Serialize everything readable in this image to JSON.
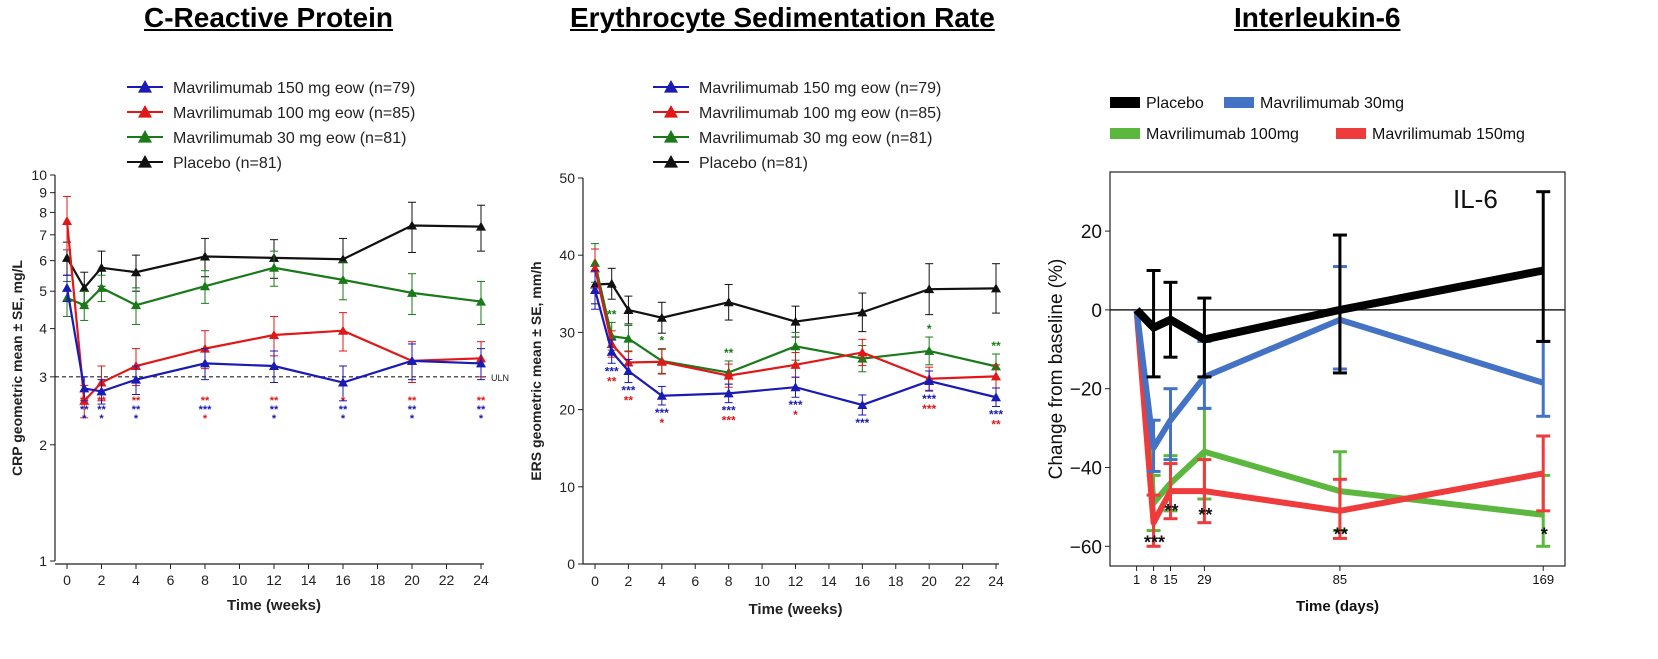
{
  "colors": {
    "blue": "#1a1ab4",
    "red": "#e01818",
    "green": "#1a7a1a",
    "black": "#111111",
    "il6_black": "#000000",
    "il6_blue": "#4472c4",
    "il6_green": "#5cb73f",
    "il6_red": "#ee3b3b"
  },
  "chart_data": [
    {
      "type": "line",
      "title": "C-Reactive Protein",
      "xlabel": "Time (weeks)",
      "ylabel": "CRP geometric mean ± SE, mg/L",
      "yscale": "log",
      "xlim": [
        0,
        24
      ],
      "ylim": [
        1,
        10
      ],
      "x_ticks": [
        0,
        2,
        4,
        6,
        8,
        10,
        12,
        14,
        16,
        18,
        20,
        22,
        24
      ],
      "y_ticks": [
        1,
        2,
        3,
        4,
        5,
        6,
        7,
        8,
        9,
        10
      ],
      "reference_line": {
        "value": 3,
        "label": "ULN"
      },
      "legend": [
        "Mavrilimumab 150 mg eow (n=79)",
        "Mavrilimumab 100 mg eow (n=85)",
        "Mavrilimumab 30 mg eow (n=81)",
        "Placebo (n=81)"
      ],
      "x": [
        0,
        1,
        2,
        4,
        8,
        12,
        16,
        20,
        24
      ],
      "series": [
        {
          "name": "Mavrilimumab 150 mg eow (n=79)",
          "color": "blue",
          "values": [
            5.1,
            2.8,
            2.75,
            2.95,
            3.25,
            3.2,
            2.9,
            3.3,
            3.25
          ],
          "se": [
            0.4,
            0.2,
            0.2,
            0.25,
            0.3,
            0.3,
            0.3,
            0.35,
            0.3
          ]
        },
        {
          "name": "Mavrilimumab 100 mg eow (n=85)",
          "color": "red",
          "values": [
            7.6,
            2.6,
            2.9,
            3.2,
            3.55,
            3.85,
            3.95,
            3.3,
            3.35
          ],
          "se": [
            1.2,
            0.25,
            0.3,
            0.35,
            0.4,
            0.45,
            0.45,
            0.4,
            0.35
          ]
        },
        {
          "name": "Mavrilimumab 30 mg eow (n=81)",
          "color": "green",
          "values": [
            4.8,
            4.6,
            5.1,
            4.6,
            5.15,
            5.75,
            5.35,
            4.95,
            4.7
          ],
          "se": [
            0.5,
            0.4,
            0.4,
            0.5,
            0.5,
            0.6,
            0.6,
            0.6,
            0.6
          ]
        },
        {
          "name": "Placebo (n=81)",
          "color": "black",
          "values": [
            6.1,
            5.1,
            5.75,
            5.6,
            6.15,
            6.1,
            6.05,
            7.4,
            7.35
          ],
          "se": [
            0.6,
            0.5,
            0.6,
            0.6,
            0.7,
            0.7,
            0.8,
            1.1,
            1.0
          ]
        }
      ],
      "annotations": [
        {
          "x": 1,
          "rows": [
            [
              "**",
              "red"
            ],
            [
              "**",
              "blue"
            ],
            [
              "*",
              "blue"
            ]
          ]
        },
        {
          "x": 2,
          "rows": [
            [
              "**",
              "red"
            ],
            [
              "**",
              "blue"
            ],
            [
              "*",
              "blue"
            ]
          ]
        },
        {
          "x": 4,
          "rows": [
            [
              "**",
              "red"
            ],
            [
              "**",
              "blue"
            ],
            [
              "*",
              "blue"
            ]
          ]
        },
        {
          "x": 8,
          "rows": [
            [
              "**",
              "red"
            ],
            [
              "***",
              "blue"
            ],
            [
              "*",
              "red"
            ]
          ]
        },
        {
          "x": 12,
          "rows": [
            [
              "**",
              "red"
            ],
            [
              "**",
              "blue"
            ],
            [
              "*",
              "blue"
            ]
          ]
        },
        {
          "x": 16,
          "rows": [
            [
              "*",
              "red"
            ],
            [
              "**",
              "blue"
            ],
            [
              "*",
              "blue"
            ]
          ]
        },
        {
          "x": 20,
          "rows": [
            [
              "**",
              "red"
            ],
            [
              "**",
              "blue"
            ],
            [
              "*",
              "blue"
            ]
          ]
        },
        {
          "x": 24,
          "rows": [
            [
              "**",
              "red"
            ],
            [
              "**",
              "blue"
            ],
            [
              "*",
              "blue"
            ]
          ]
        }
      ]
    },
    {
      "type": "line",
      "title": "Erythrocyte Sedimentation Rate",
      "xlabel": "Time (weeks)",
      "ylabel": "ERS geometric mean ± SE, mm/h",
      "xlim": [
        0,
        24
      ],
      "ylim": [
        0,
        50
      ],
      "x_ticks": [
        0,
        2,
        4,
        6,
        8,
        10,
        12,
        14,
        16,
        18,
        20,
        22,
        24
      ],
      "y_ticks": [
        0,
        10,
        20,
        30,
        40,
        50
      ],
      "legend": [
        "Mavrilimumab 150 mg eow (n=79)",
        "Mavrilimumab 100 mg eow (n=85)",
        "Mavrilimumab 30 mg eow (n=81)",
        "Placebo (n=81)"
      ],
      "x": [
        0,
        1,
        2,
        4,
        8,
        12,
        16,
        20,
        24
      ],
      "series": [
        {
          "name": "Mavrilimumab 150 mg eow (n=79)",
          "color": "blue",
          "values": [
            35.5,
            27.5,
            25.0,
            21.8,
            22.1,
            22.9,
            20.6,
            23.7,
            21.6
          ],
          "se": [
            2.5,
            1.5,
            1.5,
            1.2,
            1.2,
            1.3,
            1.3,
            1.3,
            1.2
          ]
        },
        {
          "name": "Mavrilimumab 100 mg eow (n=85)",
          "color": "red",
          "values": [
            38.3,
            28.5,
            26.1,
            26.2,
            24.4,
            25.8,
            27.4,
            24.0,
            24.3
          ],
          "se": [
            2.5,
            1.7,
            1.5,
            1.6,
            1.5,
            1.6,
            1.7,
            1.5,
            1.5
          ]
        },
        {
          "name": "Mavrilimumab 30 mg eow (n=81)",
          "color": "green",
          "values": [
            39.0,
            29.5,
            29.2,
            26.3,
            24.8,
            28.2,
            26.6,
            27.6,
            25.6
          ],
          "se": [
            2.5,
            1.8,
            1.7,
            1.6,
            1.5,
            1.8,
            1.7,
            1.8,
            1.6
          ]
        },
        {
          "name": "Placebo (n=81)",
          "color": "black",
          "values": [
            36.2,
            36.3,
            32.9,
            31.9,
            33.9,
            31.4,
            32.6,
            35.6,
            35.7
          ],
          "se": [
            2.5,
            2.0,
            1.8,
            2.0,
            2.3,
            2.0,
            2.5,
            3.3,
            3.2
          ]
        }
      ],
      "annotations_above": [
        {
          "x": 1,
          "text": "**",
          "color": "green"
        },
        {
          "x": 4,
          "text": "*",
          "color": "green"
        },
        {
          "x": 8,
          "text": "**",
          "color": "green"
        },
        {
          "x": 20,
          "text": "*",
          "color": "green"
        },
        {
          "x": 24,
          "text": "**",
          "color": "green"
        }
      ],
      "annotations_below": [
        {
          "x": 1,
          "rows": [
            [
              "***",
              "blue"
            ],
            [
              "**",
              "red"
            ]
          ]
        },
        {
          "x": 2,
          "rows": [
            [
              "***",
              "blue"
            ],
            [
              "**",
              "red"
            ]
          ]
        },
        {
          "x": 4,
          "rows": [
            [
              "***",
              "blue"
            ],
            [
              "*",
              "red"
            ]
          ]
        },
        {
          "x": 8,
          "rows": [
            [
              "***",
              "blue"
            ],
            [
              "***",
              "red"
            ]
          ]
        },
        {
          "x": 12,
          "rows": [
            [
              "***",
              "blue"
            ],
            [
              "*",
              "red"
            ]
          ]
        },
        {
          "x": 16,
          "rows": [
            [
              "***",
              "blue"
            ]
          ]
        },
        {
          "x": 20,
          "rows": [
            [
              "***",
              "blue"
            ],
            [
              "***",
              "red"
            ]
          ]
        },
        {
          "x": 24,
          "rows": [
            [
              "***",
              "blue"
            ],
            [
              "**",
              "red"
            ]
          ]
        }
      ]
    },
    {
      "type": "line",
      "title": "Interleukin-6",
      "inset_label": "IL-6",
      "xlabel": "Time (days)",
      "ylabel": "Change from baseline (%)",
      "xlim": [
        -10,
        178
      ],
      "ylim": [
        -65,
        35
      ],
      "x_ticks": [
        1,
        8,
        15,
        29,
        85,
        169
      ],
      "y_ticks": [
        20,
        0,
        -20,
        -40,
        -60
      ],
      "legend": [
        "Placebo",
        "Mavrilimumab 30mg",
        "Mavrilimumab 100mg",
        "Mavrilimumab 150mg"
      ],
      "x": [
        1,
        8,
        15,
        29,
        85,
        169
      ],
      "series": [
        {
          "name": "Placebo",
          "color": "il6_black",
          "values": [
            0,
            -4.5,
            -2.5,
            -7.5,
            0,
            10
          ],
          "lo": [
            0,
            -17,
            -12,
            -17,
            -16,
            -8
          ],
          "hi": [
            0,
            10,
            7,
            3,
            19,
            30
          ]
        },
        {
          "name": "Mavrilimumab 30mg",
          "color": "il6_blue",
          "values": [
            0,
            -35,
            -28,
            -17,
            -2.5,
            -18.5
          ],
          "lo": [
            0,
            -41,
            -38,
            -25,
            -15,
            -27
          ],
          "hi": [
            0,
            -28,
            -20,
            -8,
            11,
            -8
          ]
        },
        {
          "name": "Mavrilimumab 100mg",
          "color": "il6_green",
          "values": [
            0,
            -49,
            -44,
            -36,
            -46,
            -52
          ],
          "lo": [
            0,
            -56,
            -51,
            -48,
            -56,
            -60
          ],
          "hi": [
            0,
            -42,
            -37,
            -25,
            -36,
            -42
          ]
        },
        {
          "name": "Mavrilimumab 150mg",
          "color": "il6_red",
          "values": [
            0,
            -54,
            -46,
            -46,
            -51,
            -41.5
          ],
          "lo": [
            0,
            -60,
            -53,
            -54,
            -58,
            -51
          ],
          "hi": [
            0,
            -47,
            -39,
            -38,
            -43,
            -32
          ]
        }
      ],
      "annotations": [
        {
          "x": 8,
          "text": "***",
          "y": -58
        },
        {
          "x": 15,
          "text": "**",
          "y": -50
        },
        {
          "x": 29,
          "text": "**",
          "y": -51
        },
        {
          "x": 85,
          "text": "**",
          "y": -56
        },
        {
          "x": 169,
          "text": "*",
          "y": -56
        }
      ]
    }
  ]
}
